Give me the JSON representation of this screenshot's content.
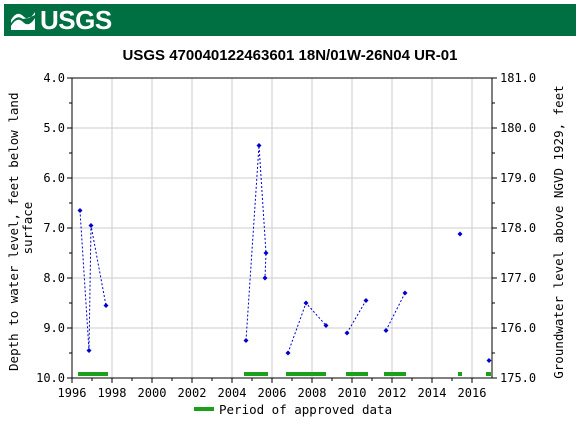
{
  "header": {
    "logo_text": "USGS",
    "brand_color": "#006f41"
  },
  "chart_data": {
    "type": "scatter",
    "title": "USGS 470040122463601 18N/01W-26N04 UR-01",
    "ylabel_left": "Depth to water level, feet below land surface",
    "ylabel_right": "Groundwater level above NGVD 1929, feet",
    "xlabel": "",
    "xlim": [
      1996,
      2017
    ],
    "ylim_left": [
      10.0,
      4.0
    ],
    "ylim_right": [
      175.0,
      181.0
    ],
    "x_ticks": [
      "1996",
      "1998",
      "2000",
      "2002",
      "2004",
      "2006",
      "2008",
      "2010",
      "2012",
      "2014",
      "2016"
    ],
    "y_ticks_left": [
      "4.0",
      "5.0",
      "6.0",
      "7.0",
      "8.0",
      "9.0",
      "10.0"
    ],
    "y_ticks_right": [
      "181.0",
      "180.0",
      "179.0",
      "178.0",
      "177.0",
      "176.0",
      "175.0"
    ],
    "grid": true,
    "series": [
      {
        "color": "#0000cc",
        "points": [
          {
            "x": 1996.4,
            "y": 6.65
          },
          {
            "x": 1996.85,
            "y": 9.45
          },
          {
            "x": 1996.95,
            "y": 6.95
          },
          {
            "x": 1997.7,
            "y": 8.55
          },
          {
            "x": 2004.7,
            "y": 9.25
          },
          {
            "x": 2005.35,
            "y": 5.35
          },
          {
            "x": 2005.7,
            "y": 7.5
          },
          {
            "x": 2005.65,
            "y": 8.0
          },
          {
            "x": 2006.8,
            "y": 9.5
          },
          {
            "x": 2007.7,
            "y": 8.5
          },
          {
            "x": 2008.7,
            "y": 8.95
          },
          {
            "x": 2009.75,
            "y": 9.1
          },
          {
            "x": 2010.7,
            "y": 8.45
          },
          {
            "x": 2011.7,
            "y": 9.05
          },
          {
            "x": 2012.65,
            "y": 8.3
          },
          {
            "x": 2015.4,
            "y": 7.12
          },
          {
            "x": 2016.85,
            "y": 9.65
          }
        ],
        "segments": [
          [
            0,
            1,
            2,
            3
          ],
          [
            4,
            5,
            6,
            7
          ],
          [
            8,
            9,
            10
          ],
          [
            11,
            12
          ],
          [
            13,
            14
          ],
          [
            15
          ],
          [
            16
          ]
        ]
      }
    ],
    "approved_periods": [
      [
        1996.3,
        1997.8
      ],
      [
        2004.6,
        2005.8
      ],
      [
        2006.7,
        2008.7
      ],
      [
        2009.7,
        2010.8
      ],
      [
        2011.6,
        2012.7
      ],
      [
        2015.3,
        2015.5
      ],
      [
        2016.7,
        2017.0
      ]
    ],
    "approved_color": "#1ca01c",
    "legend": {
      "label": "Period of approved data",
      "position": "bottom-center"
    }
  }
}
